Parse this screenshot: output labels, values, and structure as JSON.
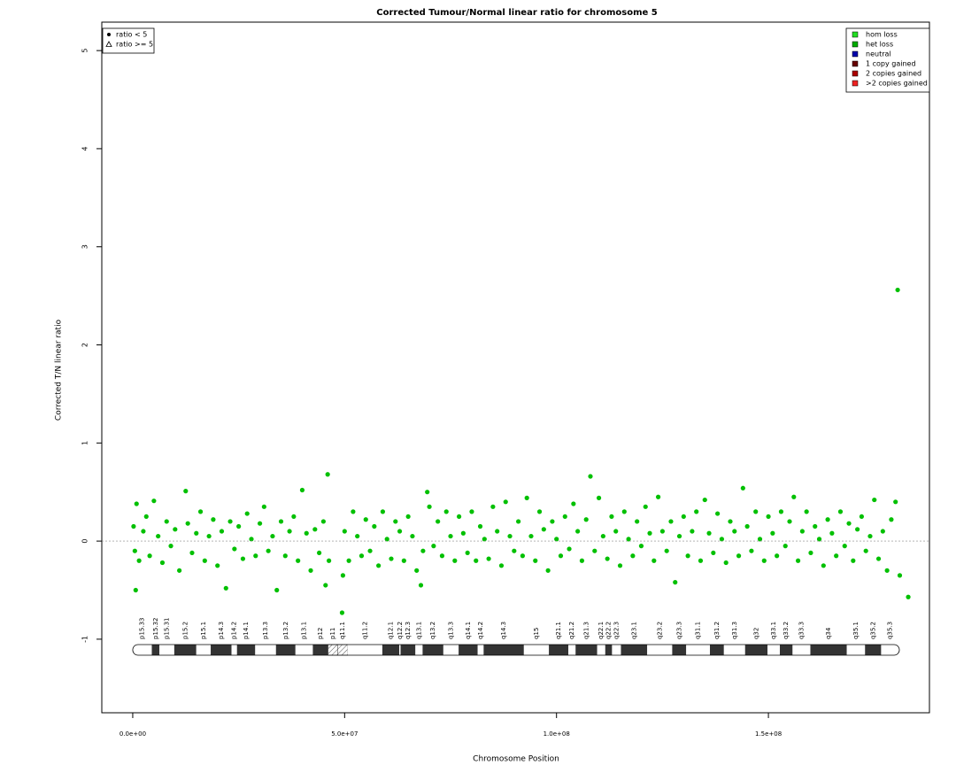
{
  "chart_data": {
    "type": "scatter",
    "title": "Corrected Tumour/Normal linear ratio for chromosome  5",
    "x_label": "Chromosome Position",
    "y_label": "Corrected T/N linear ratio",
    "xlim": [
      -7300000.0,
      188000000.0
    ],
    "ylim": [
      -1.75,
      5.29
    ],
    "xticks": [
      {
        "value": 0,
        "label": "0.0e+00"
      },
      {
        "value": 50000000.0,
        "label": "5.0e+07"
      },
      {
        "value": 100000000.0,
        "label": "1.0e+08"
      },
      {
        "value": 150000000.0,
        "label": "1.5e+08"
      }
    ],
    "yticks": [
      -1,
      0,
      1,
      2,
      3,
      4,
      5
    ],
    "reference_line": 0,
    "series": [
      {
        "color": "#00c000",
        "x": [
          200000.0,
          500000.0,
          700000.0,
          900000.0,
          1500000.0,
          2500000.0,
          3200000.0,
          4000000.0,
          5000000.0,
          6000000.0,
          7000000.0,
          8000000.0,
          9000000.0,
          10000000.0,
          11000000.0,
          12500000.0,
          13000000.0,
          14000000.0,
          15000000.0,
          16000000.0,
          17000000.0,
          18000000.0,
          19000000.0,
          20000000.0,
          21000000.0,
          22000000.0,
          23000000.0,
          24000000.0,
          25000000.0,
          26000000.0,
          27000000.0,
          28000000.0,
          29000000.0,
          30000000.0,
          31000000.0,
          32000000.0,
          33000000.0,
          34000000.0,
          35000000.0,
          36000000.0,
          37000000.0,
          38000000.0,
          39000000.0,
          40000000.0,
          41000000.0,
          42000000.0,
          43000000.0,
          44000000.0,
          45000000.0,
          45500000.0,
          46000000.0,
          46300000.0,
          49400000.0,
          49600000.0,
          50000000.0,
          51000000.0,
          52000000.0,
          53000000.0,
          54000000.0,
          55000000.0,
          56000000.0,
          57000000.0,
          58000000.0,
          59000000.0,
          60000000.0,
          61000000.0,
          62000000.0,
          63000000.0,
          64000000.0,
          65000000.0,
          66000000.0,
          67000000.0,
          68000000.0,
          68500000.0,
          69500000.0,
          70000000.0,
          71000000.0,
          72000000.0,
          73000000.0,
          74000000.0,
          75000000.0,
          76000000.0,
          77000000.0,
          78000000.0,
          79000000.0,
          80000000.0,
          81000000.0,
          82000000.0,
          83000000.0,
          84000000.0,
          85000000.0,
          86000000.0,
          87000000.0,
          88000000.0,
          89000000.0,
          90000000.0,
          91000000.0,
          92000000.0,
          93000000.0,
          94000000.0,
          95000000.0,
          96000000.0,
          97000000.0,
          98000000.0,
          99000000.0,
          100000000.0,
          101000000.0,
          102000000.0,
          103000000.0,
          104000000.0,
          105000000.0,
          106000000.0,
          107000000.0,
          108000000.0,
          109000000.0,
          110000000.0,
          111000000.0,
          112000000.0,
          113000000.0,
          114000000.0,
          115000000.0,
          116000000.0,
          117000000.0,
          118000000.0,
          119000000.0,
          120000000.0,
          121000000.0,
          122000000.0,
          123000000.0,
          124000000.0,
          125000000.0,
          126000000.0,
          127000000.0,
          128000000.0,
          129000000.0,
          130000000.0,
          131000000.0,
          132000000.0,
          133000000.0,
          134000000.0,
          135000000.0,
          136000000.0,
          137000000.0,
          138000000.0,
          139000000.0,
          140000000.0,
          141000000.0,
          142000000.0,
          143000000.0,
          144000000.0,
          145000000.0,
          146000000.0,
          147000000.0,
          148000000.0,
          149000000.0,
          150000000.0,
          151000000.0,
          152000000.0,
          153000000.0,
          154000000.0,
          155000000.0,
          156000000.0,
          157000000.0,
          158000000.0,
          159000000.0,
          160000000.0,
          161000000.0,
          162000000.0,
          163000000.0,
          164000000.0,
          165000000.0,
          166000000.0,
          167000000.0,
          168000000.0,
          169000000.0,
          170000000.0,
          171000000.0,
          172000000.0,
          173000000.0,
          174000000.0,
          175000000.0,
          176000000.0,
          177000000.0,
          178000000.0,
          179000000.0,
          180000000.0,
          180500000.0,
          181000000.0,
          183000000.0
        ],
        "values": [
          0.15,
          -0.1,
          -0.5,
          0.38,
          -0.2,
          0.1,
          0.25,
          -0.15,
          0.41,
          0.05,
          -0.22,
          0.2,
          -0.05,
          0.12,
          -0.3,
          0.51,
          0.18,
          -0.12,
          0.08,
          0.3,
          -0.2,
          0.05,
          0.22,
          -0.25,
          0.1,
          -0.48,
          0.2,
          -0.08,
          0.15,
          -0.18,
          0.28,
          0.02,
          -0.15,
          0.18,
          0.35,
          -0.1,
          0.05,
          -0.5,
          0.2,
          -0.15,
          0.1,
          0.25,
          -0.2,
          0.52,
          0.08,
          -0.3,
          0.12,
          -0.12,
          0.2,
          -0.45,
          0.68,
          -0.2,
          -0.73,
          -0.35,
          0.1,
          -0.2,
          0.3,
          0.05,
          -0.15,
          0.22,
          -0.1,
          0.15,
          -0.25,
          0.3,
          0.02,
          -0.18,
          0.2,
          0.1,
          -0.2,
          0.25,
          0.05,
          -0.3,
          -0.45,
          -0.1,
          0.5,
          0.35,
          -0.05,
          0.2,
          -0.15,
          0.3,
          0.05,
          -0.2,
          0.25,
          0.08,
          -0.12,
          0.3,
          -0.2,
          0.15,
          0.02,
          -0.18,
          0.35,
          0.1,
          -0.25,
          0.4,
          0.05,
          -0.1,
          0.2,
          -0.15,
          0.44,
          0.05,
          -0.2,
          0.3,
          0.12,
          -0.3,
          0.2,
          0.02,
          -0.15,
          0.25,
          -0.08,
          0.38,
          0.1,
          -0.2,
          0.22,
          0.66,
          -0.1,
          0.44,
          0.05,
          -0.18,
          0.25,
          0.1,
          -0.25,
          0.3,
          0.02,
          -0.15,
          0.2,
          -0.05,
          0.35,
          0.08,
          -0.2,
          0.45,
          0.1,
          -0.1,
          0.2,
          -0.42,
          0.05,
          0.25,
          -0.15,
          0.1,
          0.3,
          -0.2,
          0.42,
          0.08,
          -0.12,
          0.28,
          0.02,
          -0.22,
          0.2,
          0.1,
          -0.15,
          0.54,
          0.15,
          -0.1,
          0.3,
          0.02,
          -0.2,
          0.25,
          0.08,
          -0.15,
          0.3,
          -0.05,
          0.2,
          0.45,
          -0.2,
          0.1,
          0.3,
          -0.12,
          0.15,
          0.02,
          -0.25,
          0.22,
          0.08,
          -0.15,
          0.3,
          -0.05,
          0.18,
          -0.2,
          0.12,
          0.25,
          -0.1,
          0.05,
          0.42,
          -0.18,
          0.1,
          -0.3,
          0.22,
          0.4,
          2.56,
          -0.35,
          -0.57
        ]
      }
    ],
    "shape_legend": [
      "ratio < 5",
      "ratio >= 5"
    ],
    "color_legend": [
      {
        "label": "hom loss",
        "color": "#22dd22"
      },
      {
        "label": "het loss",
        "color": "#00aa00"
      },
      {
        "label": "neutral",
        "color": "#0000aa"
      },
      {
        "label": "1 copy gained",
        "color": "#660000"
      },
      {
        "label": "2 copies gained",
        "color": "#aa0000"
      },
      {
        "label": ">2 copies gained",
        "color": "#ee2222"
      }
    ],
    "cytobands": [
      {
        "name": "p15.33",
        "start": 0,
        "end": 4500000.0,
        "stain": "gneg"
      },
      {
        "name": "p15.32",
        "start": 4500000.0,
        "end": 6300000.0,
        "stain": "gpos"
      },
      {
        "name": "p15.31",
        "start": 6300000.0,
        "end": 9800000.0,
        "stain": "gneg"
      },
      {
        "name": "p15.2",
        "start": 9800000.0,
        "end": 15000000.0,
        "stain": "gpos"
      },
      {
        "name": "p15.1",
        "start": 15000000.0,
        "end": 18400000.0,
        "stain": "gneg"
      },
      {
        "name": "p14.3",
        "start": 18400000.0,
        "end": 23300000.0,
        "stain": "gpos"
      },
      {
        "name": "p14.2",
        "start": 23300000.0,
        "end": 24600000.0,
        "stain": "gneg"
      },
      {
        "name": "p14.1",
        "start": 24600000.0,
        "end": 28900000.0,
        "stain": "gpos"
      },
      {
        "name": "p13.3",
        "start": 28900000.0,
        "end": 33800000.0,
        "stain": "gneg"
      },
      {
        "name": "p13.2",
        "start": 33800000.0,
        "end": 38400000.0,
        "stain": "gpos"
      },
      {
        "name": "p13.1",
        "start": 38400000.0,
        "end": 42500000.0,
        "stain": "gneg"
      },
      {
        "name": "p12",
        "start": 42500000.0,
        "end": 46100000.0,
        "stain": "gpos"
      },
      {
        "name": "p11",
        "start": 46100000.0,
        "end": 48400000.0,
        "stain": "acen"
      },
      {
        "name": "q11.1",
        "start": 48400000.0,
        "end": 50700000.0,
        "stain": "acen"
      },
      {
        "name": "q11.2",
        "start": 50700000.0,
        "end": 58900000.0,
        "stain": "gneg"
      },
      {
        "name": "q12.1",
        "start": 58900000.0,
        "end": 62900000.0,
        "stain": "gpos"
      },
      {
        "name": "q12.2",
        "start": 62900000.0,
        "end": 63200000.0,
        "stain": "gneg"
      },
      {
        "name": "q12.3",
        "start": 63200000.0,
        "end": 66700000.0,
        "stain": "gpos"
      },
      {
        "name": "q13.1",
        "start": 66700000.0,
        "end": 68400000.0,
        "stain": "gneg"
      },
      {
        "name": "q13.2",
        "start": 68400000.0,
        "end": 73300000.0,
        "stain": "gpos"
      },
      {
        "name": "q13.3",
        "start": 73300000.0,
        "end": 76900000.0,
        "stain": "gneg"
      },
      {
        "name": "q14.1",
        "start": 76900000.0,
        "end": 81400000.0,
        "stain": "gpos"
      },
      {
        "name": "q14.2",
        "start": 81400000.0,
        "end": 82800000.0,
        "stain": "gneg"
      },
      {
        "name": "q14.3",
        "start": 82800000.0,
        "end": 92300000.0,
        "stain": "gpos"
      },
      {
        "name": "q15",
        "start": 92300000.0,
        "end": 98200000.0,
        "stain": "gneg"
      },
      {
        "name": "q21.1",
        "start": 98200000.0,
        "end": 102800000.0,
        "stain": "gpos"
      },
      {
        "name": "q21.2",
        "start": 102800000.0,
        "end": 104500000.0,
        "stain": "gneg"
      },
      {
        "name": "q21.3",
        "start": 104500000.0,
        "end": 109600000.0,
        "stain": "gpos"
      },
      {
        "name": "q22.1",
        "start": 109600000.0,
        "end": 111500000.0,
        "stain": "gneg"
      },
      {
        "name": "q22.2",
        "start": 111500000.0,
        "end": 113100000.0,
        "stain": "gpos"
      },
      {
        "name": "q22.3",
        "start": 113100000.0,
        "end": 115200000.0,
        "stain": "gneg"
      },
      {
        "name": "q23.1",
        "start": 115200000.0,
        "end": 121400000.0,
        "stain": "gpos"
      },
      {
        "name": "q23.2",
        "start": 121400000.0,
        "end": 127300000.0,
        "stain": "gneg"
      },
      {
        "name": "q23.3",
        "start": 127300000.0,
        "end": 130600000.0,
        "stain": "gpos"
      },
      {
        "name": "q31.1",
        "start": 130600000.0,
        "end": 136200000.0,
        "stain": "gneg"
      },
      {
        "name": "q31.2",
        "start": 136200000.0,
        "end": 139500000.0,
        "stain": "gpos"
      },
      {
        "name": "q31.3",
        "start": 139500000.0,
        "end": 144500000.0,
        "stain": "gneg"
      },
      {
        "name": "q32",
        "start": 144500000.0,
        "end": 149800000.0,
        "stain": "gpos"
      },
      {
        "name": "q33.1",
        "start": 149800000.0,
        "end": 152700000.0,
        "stain": "gneg"
      },
      {
        "name": "q33.2",
        "start": 152700000.0,
        "end": 155700000.0,
        "stain": "gpos"
      },
      {
        "name": "q33.3",
        "start": 155700000.0,
        "end": 159900000.0,
        "stain": "gneg"
      },
      {
        "name": "q34",
        "start": 159900000.0,
        "end": 168500000.0,
        "stain": "gpos"
      },
      {
        "name": "q35.1",
        "start": 168500000.0,
        "end": 172800000.0,
        "stain": "gneg"
      },
      {
        "name": "q35.2",
        "start": 172800000.0,
        "end": 176600000.0,
        "stain": "gpos"
      },
      {
        "name": "q35.3",
        "start": 176600000.0,
        "end": 180900000.0,
        "stain": "gneg"
      }
    ]
  }
}
